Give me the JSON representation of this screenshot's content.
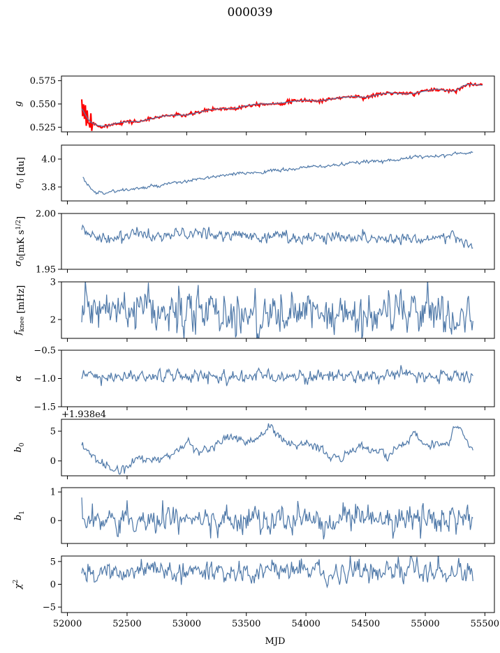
{
  "figure": {
    "title": "000039",
    "xlabel": "MJD"
  },
  "chart_data": [
    {
      "type": "line",
      "ylabel": "g",
      "ylim": [
        0.52,
        0.58
      ],
      "yticks": [
        0.525,
        0.55,
        0.575
      ],
      "ytick_labels": [
        "0.525",
        "0.550",
        "0.575"
      ],
      "xlim": [
        51950,
        55580
      ],
      "series": [
        {
          "color": "#ff0000",
          "style": "noisy-overlay",
          "x": [
            52120,
            52140,
            52170,
            52200,
            52250,
            52300,
            52350,
            52400,
            52500,
            52600,
            52700,
            52800,
            52900,
            53000,
            53100,
            53200,
            53300,
            53400,
            53500,
            53600,
            53700,
            53800,
            53900,
            54000,
            54100,
            54200,
            54300,
            54400,
            54500,
            54600,
            54700,
            54800,
            54900,
            55000,
            55100,
            55200,
            55250,
            55300,
            55350,
            55400,
            55480
          ],
          "y": [
            0.545,
            0.541,
            0.534,
            0.53,
            0.527,
            0.526,
            0.527,
            0.529,
            0.531,
            0.531,
            0.534,
            0.537,
            0.538,
            0.538,
            0.541,
            0.544,
            0.545,
            0.545,
            0.548,
            0.55,
            0.55,
            0.551,
            0.553,
            0.554,
            0.553,
            0.555,
            0.557,
            0.558,
            0.557,
            0.56,
            0.562,
            0.561,
            0.561,
            0.564,
            0.566,
            0.564,
            0.564,
            0.568,
            0.571,
            0.571,
            0.57
          ]
        },
        {
          "color": "#4e78a8",
          "style": "smooth",
          "x": [
            52120,
            52140,
            52170,
            52200,
            52250,
            52300,
            52350,
            52400,
            52500,
            52600,
            52700,
            52800,
            52900,
            53000,
            53100,
            53200,
            53300,
            53400,
            53500,
            53600,
            53700,
            53800,
            53900,
            54000,
            54100,
            54200,
            54300,
            54400,
            54500,
            54600,
            54700,
            54800,
            54900,
            55000,
            55100,
            55200,
            55250,
            55300,
            55350,
            55400,
            55480
          ],
          "y": [
            0.545,
            0.541,
            0.534,
            0.53,
            0.527,
            0.526,
            0.527,
            0.529,
            0.531,
            0.531,
            0.534,
            0.537,
            0.538,
            0.538,
            0.541,
            0.544,
            0.545,
            0.545,
            0.548,
            0.55,
            0.55,
            0.551,
            0.553,
            0.554,
            0.553,
            0.555,
            0.557,
            0.558,
            0.557,
            0.56,
            0.562,
            0.561,
            0.561,
            0.564,
            0.566,
            0.564,
            0.564,
            0.568,
            0.571,
            0.571,
            0.57
          ]
        }
      ]
    },
    {
      "type": "line",
      "ylabel": "σ0 [du]",
      "ylabel_main": "σ",
      "ylabel_sub": "0",
      "ylabel_tail": " [du]",
      "ylim": [
        3.7,
        4.1
      ],
      "yticks": [
        3.8,
        4.0
      ],
      "ytick_labels": [
        "3.8",
        "4.0"
      ],
      "xlim": [
        51950,
        55580
      ],
      "series": [
        {
          "color": "#4e78a8",
          "noise": 0.006,
          "x": [
            52130,
            52170,
            52250,
            52300,
            52400,
            52500,
            52700,
            53000,
            53200,
            53500,
            53800,
            54000,
            54300,
            54500,
            54800,
            55000,
            55200,
            55400
          ],
          "y": [
            3.86,
            3.81,
            3.76,
            3.76,
            3.77,
            3.78,
            3.8,
            3.84,
            3.87,
            3.9,
            3.92,
            3.94,
            3.96,
            3.98,
            4.0,
            4.02,
            4.03,
            4.05
          ]
        }
      ]
    },
    {
      "type": "line",
      "ylabel": "σ0[mK s^1/2]",
      "ylabel_main": "σ",
      "ylabel_sub": "0",
      "ylabel_tail": "[mK s",
      "ylabel_sup": "1/2",
      "ylabel_close": "]",
      "ylim": [
        1.95,
        2.0
      ],
      "yticks": [
        1.95,
        2.0
      ],
      "ytick_labels": [
        "1.95",
        "2.00"
      ],
      "xlim": [
        51950,
        55580
      ],
      "series": [
        {
          "color": "#4e78a8",
          "noise": 0.0025,
          "x": [
            52120,
            52140,
            52200,
            52400,
            52600,
            52800,
            53000,
            53200,
            53400,
            53600,
            53800,
            54000,
            54200,
            54400,
            54600,
            54800,
            55000,
            55200,
            55300,
            55350,
            55400
          ],
          "y": [
            1.994,
            1.985,
            1.98,
            1.978,
            1.982,
            1.979,
            1.983,
            1.98,
            1.981,
            1.979,
            1.98,
            1.978,
            1.979,
            1.98,
            1.977,
            1.978,
            1.978,
            1.979,
            1.976,
            1.973,
            1.97
          ]
        }
      ]
    },
    {
      "type": "line",
      "ylabel": "fknee [mHz]",
      "ylabel_main": "f",
      "ylabel_sub": "knee",
      "ylabel_tail": " [mHz]",
      "ylim": [
        1.5,
        3.0
      ],
      "yticks": [
        2,
        3
      ],
      "ytick_labels": [
        "2",
        "3"
      ],
      "xlim": [
        51950,
        55580
      ],
      "series": [
        {
          "color": "#4e78a8",
          "noise": 0.28,
          "x": [
            52120,
            52400,
            52800,
            53200,
            53600,
            54000,
            54400,
            54800,
            55200,
            55400
          ],
          "y": [
            2.25,
            2.2,
            2.15,
            2.2,
            2.1,
            2.15,
            2.05,
            2.25,
            2.15,
            2.05
          ]
        }
      ]
    },
    {
      "type": "line",
      "ylabel": "α",
      "ylim": [
        -1.5,
        -0.5
      ],
      "yticks": [
        -1.5,
        -1.0,
        -0.5
      ],
      "ytick_labels": [
        "−1.5",
        "−1.0",
        "−0.5"
      ],
      "xlim": [
        51950,
        55580
      ],
      "series": [
        {
          "color": "#4e78a8",
          "noise": 0.055,
          "x": [
            52120,
            52800,
            53600,
            54400,
            55400
          ],
          "y": [
            -0.97,
            -0.96,
            -0.96,
            -0.95,
            -0.96
          ]
        }
      ]
    },
    {
      "type": "line",
      "ylabel": "b0",
      "ylabel_main": "b",
      "ylabel_sub": "0",
      "offset_text": "+1.938e4",
      "ylim": [
        -2.5,
        7.0
      ],
      "yticks": [
        0,
        5
      ],
      "ytick_labels": [
        "0",
        "5"
      ],
      "xlim": [
        51950,
        55580
      ],
      "series": [
        {
          "color": "#4e78a8",
          "noise": 0.35,
          "x": [
            52120,
            52150,
            52200,
            52250,
            52300,
            52400,
            52500,
            52600,
            52700,
            52800,
            52900,
            53000,
            53100,
            53200,
            53300,
            53400,
            53500,
            53600,
            53700,
            53800,
            53900,
            54000,
            54100,
            54200,
            54300,
            54400,
            54500,
            54600,
            54700,
            54800,
            54900,
            55000,
            55100,
            55200,
            55250,
            55300,
            55350,
            55400
          ],
          "y": [
            3.0,
            2.0,
            1.0,
            0.2,
            -0.5,
            -1.5,
            -1.2,
            0.8,
            -0.3,
            0.5,
            1.5,
            3.2,
            1.5,
            2.0,
            3.5,
            4.3,
            3.0,
            4.0,
            5.8,
            3.5,
            2.5,
            3.0,
            2.5,
            0.8,
            0.5,
            2.0,
            2.2,
            1.5,
            0.9,
            2.5,
            4.5,
            3.0,
            2.8,
            3.0,
            6.3,
            5.5,
            3.5,
            2.0
          ]
        }
      ]
    },
    {
      "type": "line",
      "ylabel": "b1",
      "ylabel_main": "b",
      "ylabel_sub": "1",
      "ylim": [
        -0.8,
        1.15
      ],
      "yticks": [
        0,
        1
      ],
      "ytick_labels": [
        "0",
        "1"
      ],
      "xlim": [
        51950,
        55580
      ],
      "series": [
        {
          "color": "#4e78a8",
          "noise": 0.22,
          "x": [
            52120,
            52130,
            52150,
            52800,
            53600,
            54400,
            55400
          ],
          "y": [
            1.1,
            0.3,
            0.05,
            0.0,
            0.0,
            0.05,
            0.0
          ]
        }
      ]
    },
    {
      "type": "line",
      "ylabel": "χ2",
      "ylabel_main": "χ",
      "ylabel_sup": "2",
      "ylim": [
        -6.2,
        6.2
      ],
      "yticks": [
        -5,
        0,
        5
      ],
      "ytick_labels": [
        "−5",
        "0",
        "5"
      ],
      "xlim": [
        51950,
        55580
      ],
      "xticks": [
        52000,
        52500,
        53000,
        53500,
        54000,
        54500,
        55000,
        55500
      ],
      "xtick_labels": [
        "52000",
        "52500",
        "53000",
        "53500",
        "54000",
        "54500",
        "55000",
        "55500"
      ],
      "series": [
        {
          "color": "#4e78a8",
          "noise": 1.1,
          "x": [
            52120,
            52600,
            53000,
            53600,
            54000,
            54600,
            55000,
            55400
          ],
          "y": [
            2.5,
            2.8,
            3.0,
            2.6,
            2.9,
            2.7,
            2.8,
            2.6
          ]
        }
      ]
    }
  ]
}
